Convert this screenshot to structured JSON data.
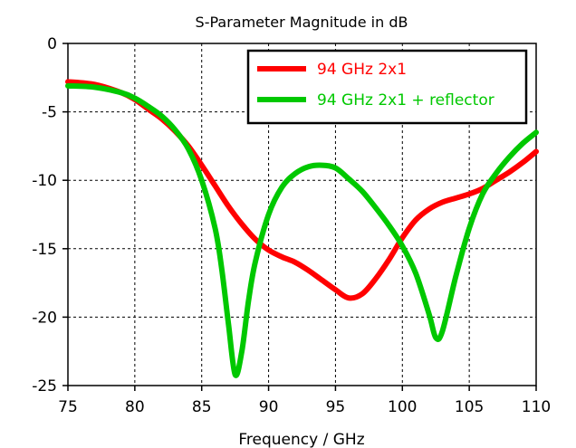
{
  "chart_data": {
    "type": "line",
    "title": "S-Parameter Magnitude in dB",
    "xlabel": "Frequency / GHz",
    "ylabel": "",
    "xlim": [
      75,
      110
    ],
    "ylim": [
      -25,
      0
    ],
    "xticks": [
      75,
      80,
      85,
      90,
      95,
      100,
      105,
      110
    ],
    "yticks": [
      0,
      -5,
      -10,
      -15,
      -20,
      -25
    ],
    "grid": "dashed",
    "legend_position": "top-right",
    "series": [
      {
        "name": "94 GHz 2x1",
        "color": "#ff0000",
        "x": [
          75,
          77,
          79,
          80,
          81,
          82,
          83,
          84,
          85,
          86,
          87,
          88,
          89,
          90,
          91,
          92,
          93,
          94,
          95,
          96,
          97,
          98,
          99,
          100,
          101,
          102,
          103,
          104,
          105,
          106,
          107,
          108,
          109,
          110
        ],
        "y": [
          -2.8,
          -3.0,
          -3.6,
          -4.1,
          -4.8,
          -5.5,
          -6.4,
          -7.5,
          -8.9,
          -10.4,
          -11.9,
          -13.2,
          -14.3,
          -15.1,
          -15.6,
          -16.0,
          -16.6,
          -17.3,
          -18.0,
          -18.6,
          -18.3,
          -17.2,
          -15.8,
          -14.2,
          -12.9,
          -12.1,
          -11.6,
          -11.3,
          -11.0,
          -10.6,
          -10.0,
          -9.4,
          -8.7,
          -7.9
        ]
      },
      {
        "name": "94 GHz 2x1 + reflector",
        "color": "#00c800",
        "x": [
          75,
          77,
          79,
          80,
          81,
          82,
          83,
          84,
          85,
          86,
          86.5,
          87,
          87.5,
          88,
          88.5,
          89,
          90,
          91,
          92,
          93,
          94,
          95,
          96,
          97,
          98,
          99,
          100,
          101,
          102,
          102.5,
          103,
          104,
          105,
          106,
          107,
          108,
          109,
          110
        ],
        "y": [
          -3.1,
          -3.2,
          -3.6,
          -4.0,
          -4.6,
          -5.3,
          -6.3,
          -7.7,
          -10.0,
          -13.5,
          -16.5,
          -20.5,
          -24.2,
          -22.5,
          -18.8,
          -16.0,
          -12.5,
          -10.5,
          -9.5,
          -9.0,
          -8.9,
          -9.1,
          -9.9,
          -10.8,
          -12.0,
          -13.3,
          -14.8,
          -16.8,
          -19.8,
          -21.5,
          -21.0,
          -17.0,
          -13.5,
          -11.0,
          -9.5,
          -8.3,
          -7.3,
          -6.5
        ]
      }
    ]
  }
}
